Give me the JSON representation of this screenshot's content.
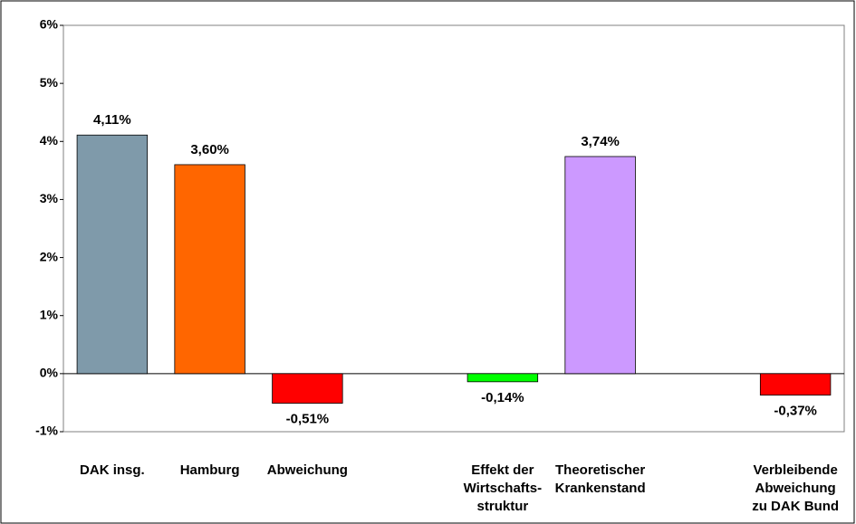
{
  "chart_data": {
    "type": "bar",
    "categories": [
      [
        "DAK insg."
      ],
      [
        "Hamburg"
      ],
      [
        "Abweichung"
      ],
      null,
      [
        "Effekt der",
        "Wirtschafts-",
        "struktur"
      ],
      [
        "Theoretischer",
        "Krankenstand"
      ],
      null,
      [
        "Verbleibende",
        "Abweichung",
        "zu DAK Bund"
      ]
    ],
    "values": [
      4.11,
      3.6,
      -0.51,
      null,
      -0.14,
      3.74,
      null,
      -0.37
    ],
    "value_labels": [
      "4,11%",
      "3,60%",
      "-0,51%",
      null,
      "-0,14%",
      "3,74%",
      null,
      "-0,37%"
    ],
    "colors": [
      "#7f9aaa",
      "#ff6600",
      "#ff0000",
      null,
      "#00ff00",
      "#cc99ff",
      null,
      "#ff0000"
    ],
    "ylim": [
      -1,
      6
    ],
    "yticks": [
      {
        "value": -1,
        "label": "-1%"
      },
      {
        "value": 0,
        "label": "0%"
      },
      {
        "value": 1,
        "label": "1%"
      },
      {
        "value": 2,
        "label": "2%"
      },
      {
        "value": 3,
        "label": "3%"
      },
      {
        "value": 4,
        "label": "4%"
      },
      {
        "value": 5,
        "label": "5%"
      },
      {
        "value": 6,
        "label": "6%"
      }
    ],
    "grid": false
  }
}
